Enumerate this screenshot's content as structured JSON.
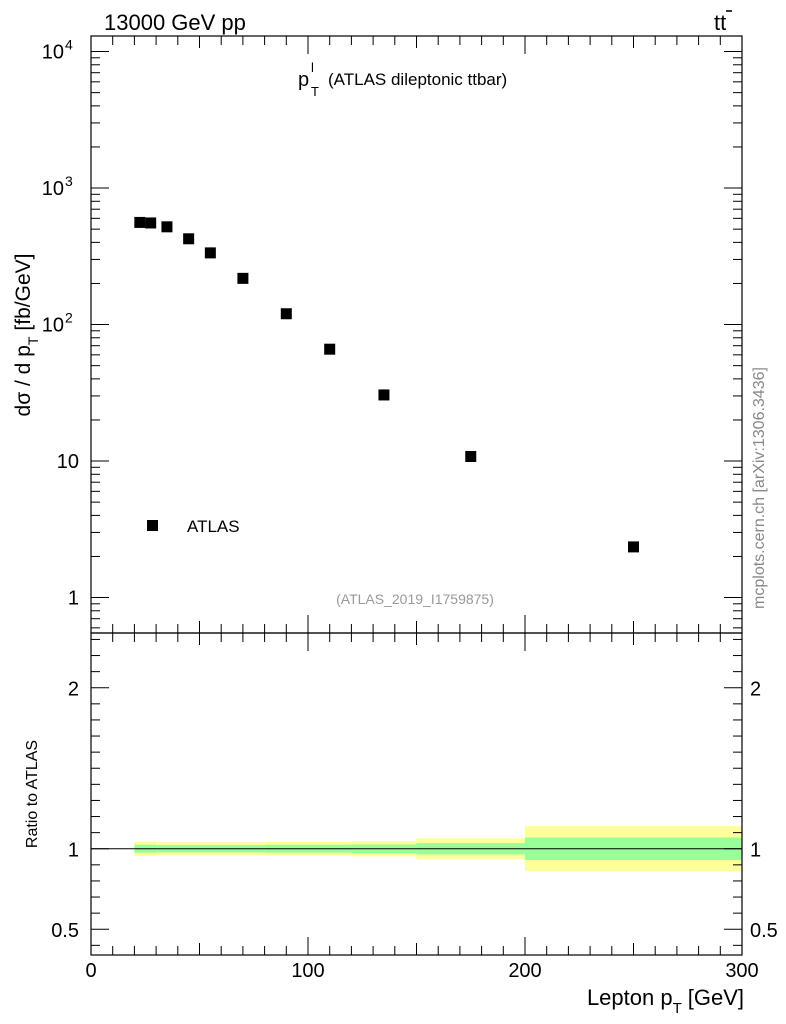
{
  "header": {
    "left": "13000 GeV pp",
    "right_base": "tt",
    "right_bar": "̄"
  },
  "top_panel": {
    "title_p": "p",
    "title_sup": "l",
    "title_sub": "T",
    "title_rest": "(ATLAS dileptonic ttbar)",
    "ylabel_main": "dσ / d p",
    "ylabel_sub": "T",
    "ylabel_unit": "[fb/GeV]",
    "analysis_id": "(ATLAS_2019_I1759875)",
    "legend_label": "ATLAS"
  },
  "side_label": "mcplots.cern.ch [arXiv:1306.3436]",
  "bottom_panel": {
    "ylabel": "Ratio to ATLAS"
  },
  "xaxis": {
    "label_main": "Lepton p",
    "label_sub": "T",
    "label_unit": "[GeV]"
  },
  "colors": {
    "band_inner": "#99ff99",
    "band_outer": "#ffff99",
    "marker": "#000000"
  },
  "chart_data": [
    {
      "type": "scatter",
      "yscale": "log",
      "xlim": [
        0,
        300
      ],
      "ylim": [
        0.55,
        13000
      ],
      "y_ticklabels": [
        {
          "value": 1,
          "base": "1",
          "exp": ""
        },
        {
          "value": 10,
          "base": "10",
          "exp": ""
        },
        {
          "value": 100,
          "base": "10",
          "exp": "2"
        },
        {
          "value": 1000,
          "base": "10",
          "exp": "3"
        },
        {
          "value": 10000,
          "base": "10",
          "exp": "4"
        }
      ],
      "series": [
        {
          "name": "ATLAS",
          "x": [
            22.5,
            27.5,
            35,
            45,
            55,
            70,
            90,
            110,
            135,
            175,
            250
          ],
          "y": [
            560,
            555,
            520,
            425,
            335,
            218,
            120,
            66,
            30.5,
            10.8,
            2.35
          ]
        }
      ],
      "legend_position": "bottom-left"
    },
    {
      "type": "area",
      "xlim": [
        0,
        300
      ],
      "ylim": [
        0.34,
        2.34
      ],
      "y_ticks": [
        0.5,
        1,
        2
      ],
      "y_ticklabels": [
        "0.5",
        "1",
        "2"
      ],
      "x_ticks": [
        0,
        100,
        200,
        300
      ],
      "x_ticklabels": [
        "0",
        "100",
        "200",
        "300"
      ],
      "reference_line": 1,
      "bins": [
        {
          "xlo": 20,
          "xhi": 30,
          "inner": [
            0.975,
            1.025
          ],
          "outer": [
            0.955,
            1.045
          ]
        },
        {
          "xlo": 30,
          "xhi": 80,
          "inner": [
            0.977,
            1.023
          ],
          "outer": [
            0.96,
            1.04
          ]
        },
        {
          "xlo": 80,
          "xhi": 120,
          "inner": [
            0.975,
            1.025
          ],
          "outer": [
            0.958,
            1.042
          ]
        },
        {
          "xlo": 120,
          "xhi": 150,
          "inner": [
            0.973,
            1.027
          ],
          "outer": [
            0.952,
            1.048
          ]
        },
        {
          "xlo": 150,
          "xhi": 200,
          "inner": [
            0.965,
            1.035
          ],
          "outer": [
            0.935,
            1.065
          ]
        },
        {
          "xlo": 200,
          "xhi": 300,
          "inner": [
            0.93,
            1.07
          ],
          "outer": [
            0.86,
            1.14
          ]
        }
      ]
    }
  ]
}
